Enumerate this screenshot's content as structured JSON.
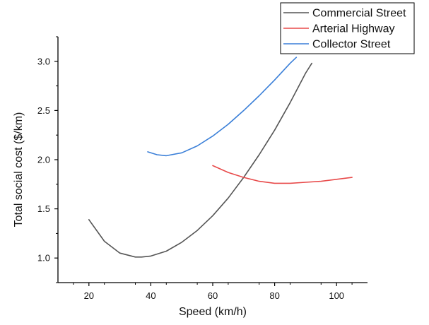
{
  "chart_data": {
    "type": "line",
    "title": "",
    "xlabel": "Speed (km/h)",
    "ylabel": "Total social cost ($/km)",
    "xlim": [
      10,
      110
    ],
    "ylim": [
      0.75,
      3.25
    ],
    "xticks": [
      20,
      40,
      60,
      80,
      100
    ],
    "yticks": [
      1.0,
      1.5,
      2.0,
      2.5,
      3.0
    ],
    "xtick_labels": [
      "20",
      "40",
      "60",
      "80",
      "100"
    ],
    "ytick_labels": [
      "1.0",
      "1.5",
      "2.0",
      "2.5",
      "3.0"
    ],
    "grid": false,
    "legend_position": "top-right",
    "series": [
      {
        "name": "Commercial Street",
        "color": "#555555",
        "x": [
          20,
          25,
          30,
          35,
          37,
          40,
          45,
          50,
          55,
          60,
          65,
          70,
          75,
          80,
          85,
          90,
          92
        ],
        "y": [
          1.39,
          1.17,
          1.05,
          1.01,
          1.01,
          1.02,
          1.07,
          1.16,
          1.28,
          1.43,
          1.61,
          1.82,
          2.05,
          2.3,
          2.58,
          2.88,
          2.98
        ]
      },
      {
        "name": "Arterial Highway",
        "color": "#e84a4a",
        "x": [
          60,
          65,
          70,
          75,
          80,
          85,
          90,
          95,
          100,
          105
        ],
        "y": [
          1.94,
          1.87,
          1.82,
          1.78,
          1.76,
          1.76,
          1.77,
          1.78,
          1.8,
          1.82
        ]
      },
      {
        "name": "Collector Street",
        "color": "#3a7fd8",
        "x": [
          39,
          42,
          45,
          50,
          55,
          60,
          65,
          70,
          75,
          80,
          85,
          87
        ],
        "y": [
          2.08,
          2.05,
          2.04,
          2.07,
          2.14,
          2.24,
          2.36,
          2.5,
          2.65,
          2.81,
          2.98,
          3.04
        ]
      }
    ]
  }
}
